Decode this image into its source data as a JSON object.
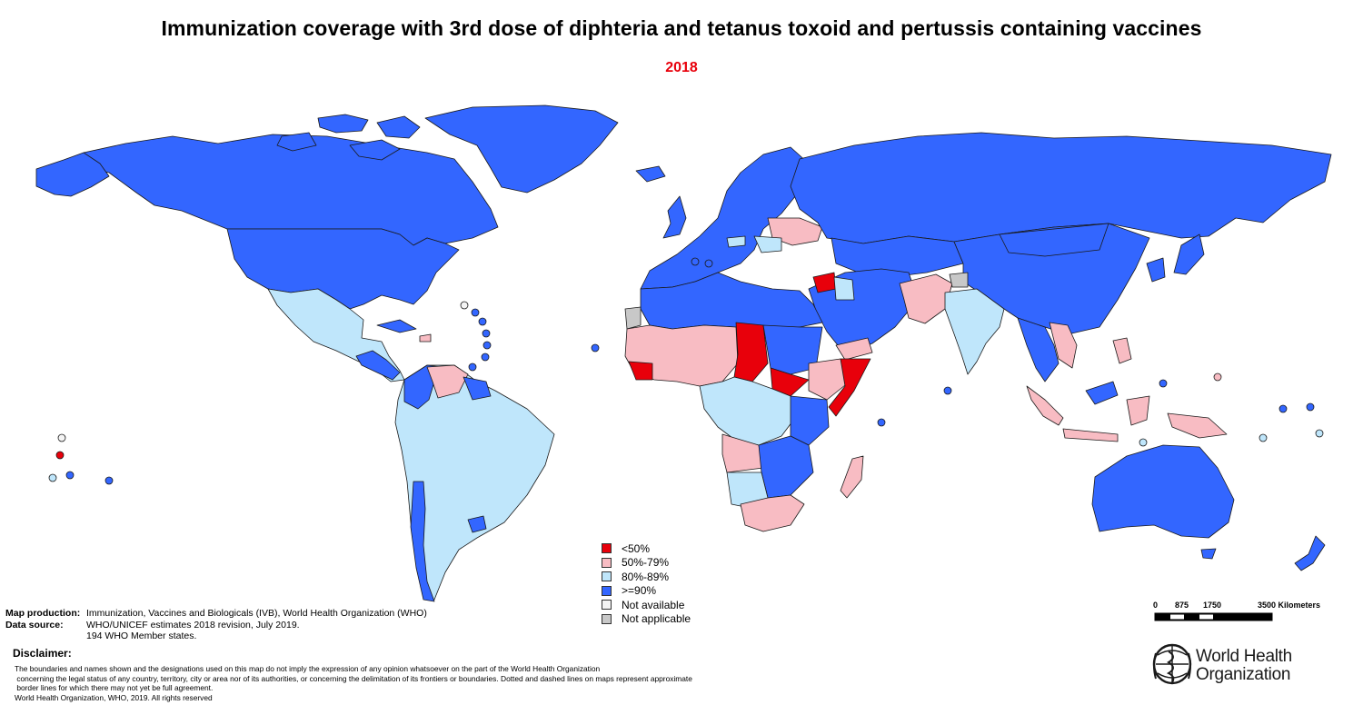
{
  "title": "Immunization coverage with 3rd dose of diphteria and tetanus toxoid and pertussis containing vaccines",
  "year": "2018",
  "legend": [
    {
      "label": "<50%",
      "color": "#e8000b"
    },
    {
      "label": "50%-79%",
      "color": "#f8bcc3"
    },
    {
      "label": "80%-89%",
      "color": "#bfe6fb"
    },
    {
      "label": ">=90%",
      "color": "#3366ff"
    },
    {
      "label": "Not available",
      "color": "#f4f4f4"
    },
    {
      "label": "Not applicable",
      "color": "#c8c8c8"
    }
  ],
  "meta": {
    "map_production_label": "Map production:",
    "map_production": "Immunization, Vaccines and Biologicals (IVB), World Health Organization (WHO)",
    "data_source_label": "Data source:",
    "data_source": "WHO/UNICEF estimates 2018 revision, July 2019.",
    "member_states": "194 WHO Member states."
  },
  "disclaimer": {
    "heading": "Disclaimer:",
    "line1": "The boundaries and names shown and the designations used on this map do not imply the expression of any opinion whatsoever on the part of the World Health Organization",
    "line2": " concerning the legal status of any country, territory, city or area nor of its authorities, or concerning the delimitation of its frontiers or boundaries. Dotted and dashed lines on maps represent approximate",
    "line3": " border lines for which there may not yet be full agreement.",
    "line4": "World Health Organization, WHO, 2019. All rights reserved"
  },
  "scale_bar": {
    "tick_0": "0",
    "tick_1": "875",
    "tick_2": "1750",
    "tick_3": "3500 Kilometers"
  },
  "logo": {
    "line1": "World Health",
    "line2": "Organization"
  },
  "colors": {
    "lt50": "#e8000b",
    "r50_79": "#f8bcc3",
    "r80_89": "#bfe6fb",
    "ge90": "#3366ff",
    "na": "#f4f4f4",
    "notapp": "#c8c8c8",
    "border": "#1a1a1a"
  }
}
